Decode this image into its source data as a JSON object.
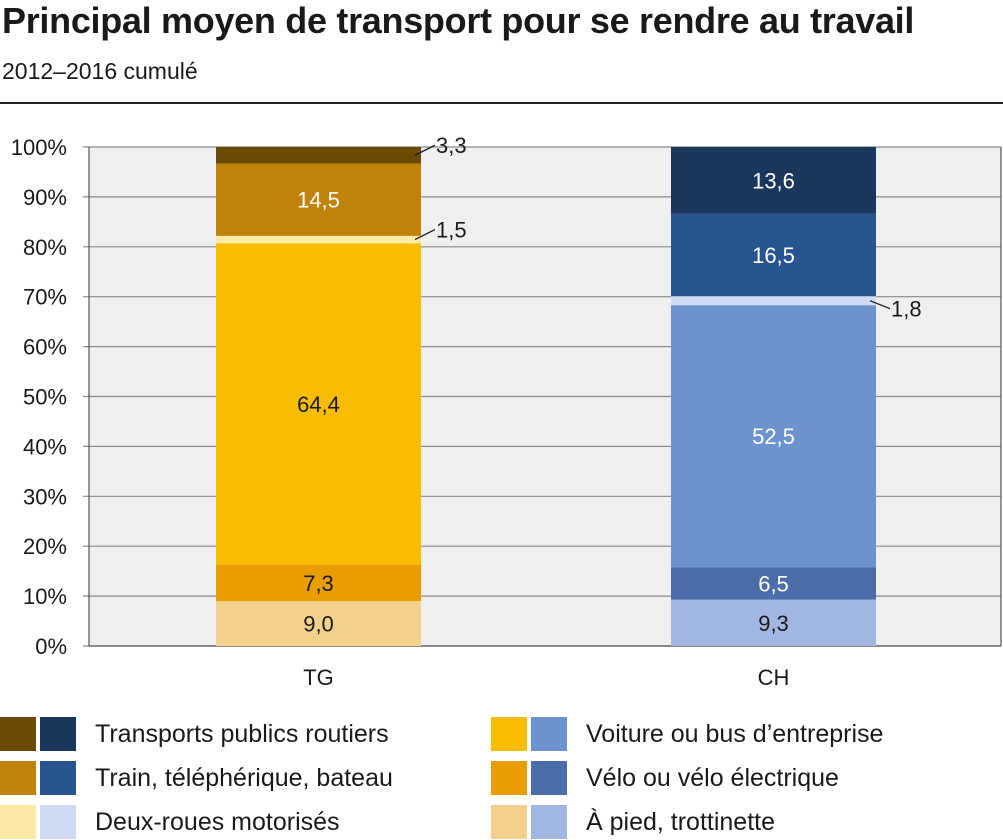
{
  "title": "Principal moyen de transport pour se rendre au travail",
  "subtitle": "2012–2016 cumulé",
  "chart_data": {
    "type": "bar",
    "stacked": true,
    "categories": [
      "TG",
      "CH"
    ],
    "ylim": [
      0,
      100
    ],
    "y_ticks": [
      "0%",
      "10%",
      "20%",
      "30%",
      "40%",
      "50%",
      "60%",
      "70%",
      "80%",
      "90%",
      "100%"
    ],
    "grid": true,
    "legend_position": "bottom",
    "series": [
      {
        "name": "À pied, trottinette",
        "values": [
          9.0,
          9.3
        ],
        "labels": [
          "9,0",
          "9,3"
        ],
        "colors": [
          "#f3d18d",
          "#a1b6e1"
        ],
        "text_colors": [
          "#1a1a1a",
          "#1a1a1a"
        ]
      },
      {
        "name": "Vélo ou vélo électrique",
        "values": [
          7.3,
          6.5
        ],
        "labels": [
          "7,3",
          "6,5"
        ],
        "colors": [
          "#e89e00",
          "#4b6eaa"
        ],
        "text_colors": [
          "#1a1a1a",
          "#ffffff"
        ]
      },
      {
        "name": "Voiture ou bus d’entreprise",
        "values": [
          64.4,
          52.5
        ],
        "labels": [
          "64,4",
          "52,5"
        ],
        "colors": [
          "#f8bc00",
          "#6d93cf"
        ],
        "text_colors": [
          "#1a1a1a",
          "#ffffff"
        ]
      },
      {
        "name": "Deux-roues motorisés",
        "values": [
          1.5,
          1.8
        ],
        "labels": [
          "1,5",
          "1,8"
        ],
        "colors": [
          "#fdeaa7",
          "#cfdbf2"
        ],
        "text_colors": [
          "#1a1a1a",
          "#1a1a1a"
        ],
        "callout": true
      },
      {
        "name": "Train, téléphérique, bateau",
        "values": [
          14.5,
          16.5
        ],
        "labels": [
          "14,5",
          "16,5"
        ],
        "colors": [
          "#c1820b",
          "#28548f"
        ],
        "text_colors": [
          "#ffffff",
          "#ffffff"
        ]
      },
      {
        "name": "Transports publics routiers",
        "values": [
          3.3,
          13.6
        ],
        "labels": [
          "3,3",
          "13,6"
        ],
        "colors": [
          "#6b4a04",
          "#1a365d"
        ],
        "text_colors": [
          "#1a1a1a",
          "#ffffff"
        ],
        "callout_first_only": true
      }
    ]
  },
  "legend": [
    {
      "label": "Transports publics routiers",
      "colors": [
        "#6b4a04",
        "#1a365d"
      ]
    },
    {
      "label": "Voiture ou bus d’entreprise",
      "colors": [
        "#f8bc00",
        "#6d93cf"
      ]
    },
    {
      "label": "Train, téléphérique, bateau",
      "colors": [
        "#c1820b",
        "#28548f"
      ]
    },
    {
      "label": "Vélo ou vélo électrique",
      "colors": [
        "#e89e00",
        "#4b6eaa"
      ]
    },
    {
      "label": "Deux-roues motorisés",
      "colors": [
        "#fdeaa7",
        "#cfdbf2"
      ]
    },
    {
      "label": "À pied, trottinette",
      "colors": [
        "#f3d18d",
        "#a1b6e1"
      ]
    }
  ]
}
